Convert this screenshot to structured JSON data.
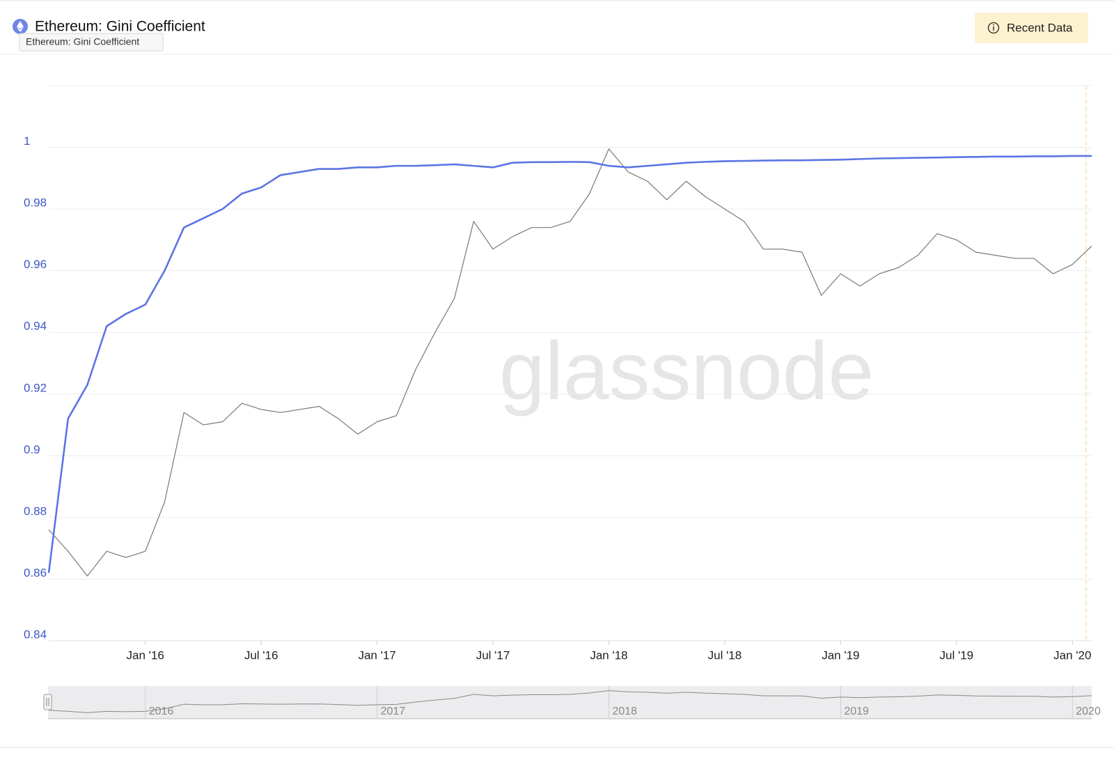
{
  "chart_data": {
    "type": "line",
    "title": "Ethereum: Gini Coefficient",
    "recent_data_button": "Recent Data",
    "watermark": "glassnode",
    "x": [
      "2015-08",
      "2015-09",
      "2015-10",
      "2015-11",
      "2015-12",
      "2016-01",
      "2016-02",
      "2016-03",
      "2016-04",
      "2016-05",
      "2016-06",
      "2016-07",
      "2016-08",
      "2016-09",
      "2016-10",
      "2016-11",
      "2016-12",
      "2017-01",
      "2017-02",
      "2017-03",
      "2017-04",
      "2017-05",
      "2017-06",
      "2017-07",
      "2017-08",
      "2017-09",
      "2017-10",
      "2017-11",
      "2017-12",
      "2018-01",
      "2018-02",
      "2018-03",
      "2018-04",
      "2018-05",
      "2018-06",
      "2018-07",
      "2018-08",
      "2018-09",
      "2018-10",
      "2018-11",
      "2018-12",
      "2019-01",
      "2019-02",
      "2019-03",
      "2019-04",
      "2019-05",
      "2019-06",
      "2019-07",
      "2019-08",
      "2019-09",
      "2019-10",
      "2019-11",
      "2019-12",
      "2020-01",
      "2020-02"
    ],
    "series": [
      {
        "color": "#5b74e4",
        "values": [
          0.862,
          0.912,
          0.923,
          0.942,
          0.946,
          0.949,
          0.96,
          0.974,
          0.977,
          0.98,
          0.985,
          0.987,
          0.991,
          0.992,
          0.993,
          0.993,
          0.9935,
          0.9935,
          0.994,
          0.994,
          0.9942,
          0.9945,
          0.994,
          0.9935,
          0.995,
          0.9952,
          0.9952,
          0.9953,
          0.9952,
          0.994,
          0.9935,
          0.994,
          0.9945,
          0.995,
          0.9953,
          0.9955,
          0.9956,
          0.9957,
          0.9958,
          0.9958,
          0.9959,
          0.996,
          0.9962,
          0.9964,
          0.9965,
          0.9966,
          0.9967,
          0.9968,
          0.9969,
          0.997,
          0.997,
          0.9971,
          0.9971,
          0.9972,
          0.9972
        ]
      },
      {
        "color": "#777777",
        "values": [
          0.876,
          0.869,
          0.861,
          0.869,
          0.867,
          0.869,
          0.885,
          0.914,
          0.91,
          0.911,
          0.917,
          0.915,
          0.914,
          0.915,
          0.916,
          0.912,
          0.907,
          0.911,
          0.913,
          0.928,
          0.94,
          0.951,
          0.976,
          0.967,
          0.971,
          0.974,
          0.974,
          0.976,
          0.985,
          0.9995,
          0.992,
          0.989,
          0.983,
          0.989,
          0.984,
          0.98,
          0.976,
          0.967,
          0.967,
          0.966,
          0.952,
          0.959,
          0.955,
          0.959,
          0.961,
          0.965,
          0.972,
          0.97,
          0.966,
          0.965,
          0.964,
          0.964,
          0.959,
          0.962,
          0.968
        ]
      }
    ],
    "xlim": [
      "2015-08",
      "2020-02"
    ],
    "xticks": [
      {
        "value": "2016-01",
        "label": "Jan '16"
      },
      {
        "value": "2016-07",
        "label": "Jul '16"
      },
      {
        "value": "2017-01",
        "label": "Jan '17"
      },
      {
        "value": "2017-07",
        "label": "Jul '17"
      },
      {
        "value": "2018-01",
        "label": "Jan '18"
      },
      {
        "value": "2018-07",
        "label": "Jul '18"
      },
      {
        "value": "2019-01",
        "label": "Jan '19"
      },
      {
        "value": "2019-07",
        "label": "Jul '19"
      },
      {
        "value": "2020-01",
        "label": "Jan '20"
      }
    ],
    "ylim": [
      0.84,
      1.02
    ],
    "yticks": [
      0.84,
      0.86,
      0.88,
      0.9,
      0.92,
      0.94,
      0.96,
      0.98,
      1
    ],
    "navigator_ticks": [
      {
        "value": "2016-01",
        "label": "2016"
      },
      {
        "value": "2017-01",
        "label": "2017"
      },
      {
        "value": "2018-01",
        "label": "2018"
      },
      {
        "value": "2019-01",
        "label": "2019"
      },
      {
        "value": "2020-01",
        "label": "2020"
      }
    ],
    "grid": true
  }
}
